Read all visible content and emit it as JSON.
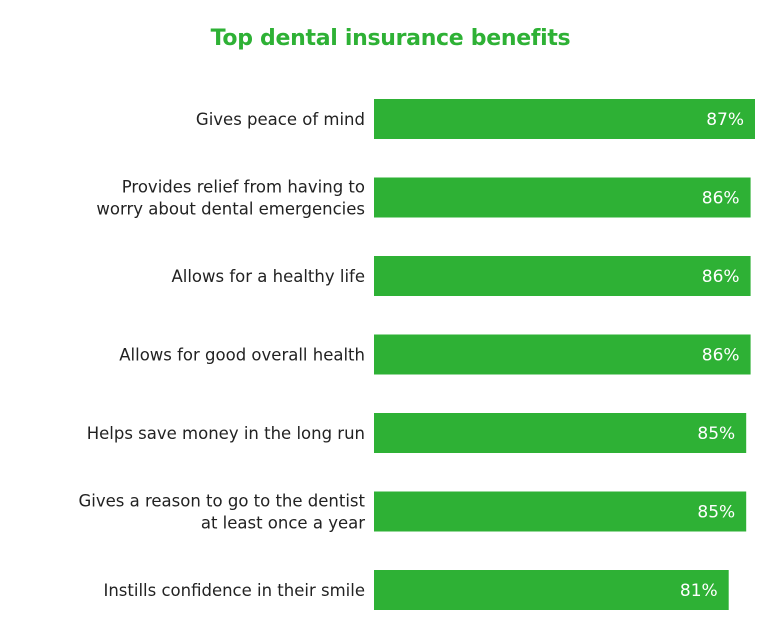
{
  "colors": {
    "bar": "#2eb135",
    "title": "#2eb135",
    "label": "#222222",
    "value_label": "#ffffff"
  },
  "chart_data": {
    "type": "bar",
    "orientation": "horizontal",
    "title": "Top dental insurance benefits",
    "categories": [
      [
        "Gives peace of mind"
      ],
      [
        "Provides relief from having to",
        "worry about dental emergencies"
      ],
      [
        "Allows for a healthy life"
      ],
      [
        "Allows for good overall health"
      ],
      [
        "Helps save money in the long run"
      ],
      [
        "Gives a reason to go to the dentist",
        "at least once a year"
      ],
      [
        "Instills confidence in their smile"
      ]
    ],
    "values": [
      87,
      86,
      86,
      86,
      85,
      85,
      81
    ],
    "value_labels": [
      "87%",
      "86%",
      "86%",
      "86%",
      "85%",
      "85%",
      "81%"
    ],
    "grid": false,
    "legend": "none"
  }
}
